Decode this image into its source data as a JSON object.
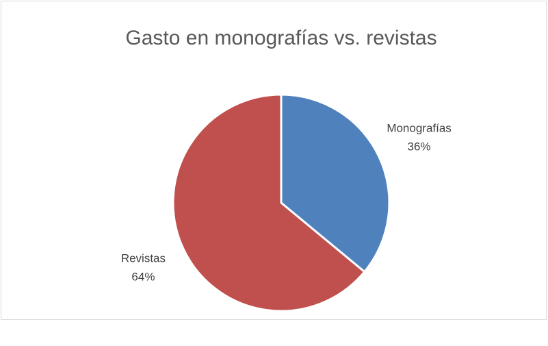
{
  "chart_data": {
    "type": "pie",
    "title": "Gasto en monografías vs. revistas",
    "categories": [
      "Monografías",
      "Revistas"
    ],
    "values": [
      36,
      64
    ],
    "value_labels": [
      "36%",
      "64%"
    ],
    "colors": [
      "#4f81bd",
      "#c0504d"
    ]
  }
}
